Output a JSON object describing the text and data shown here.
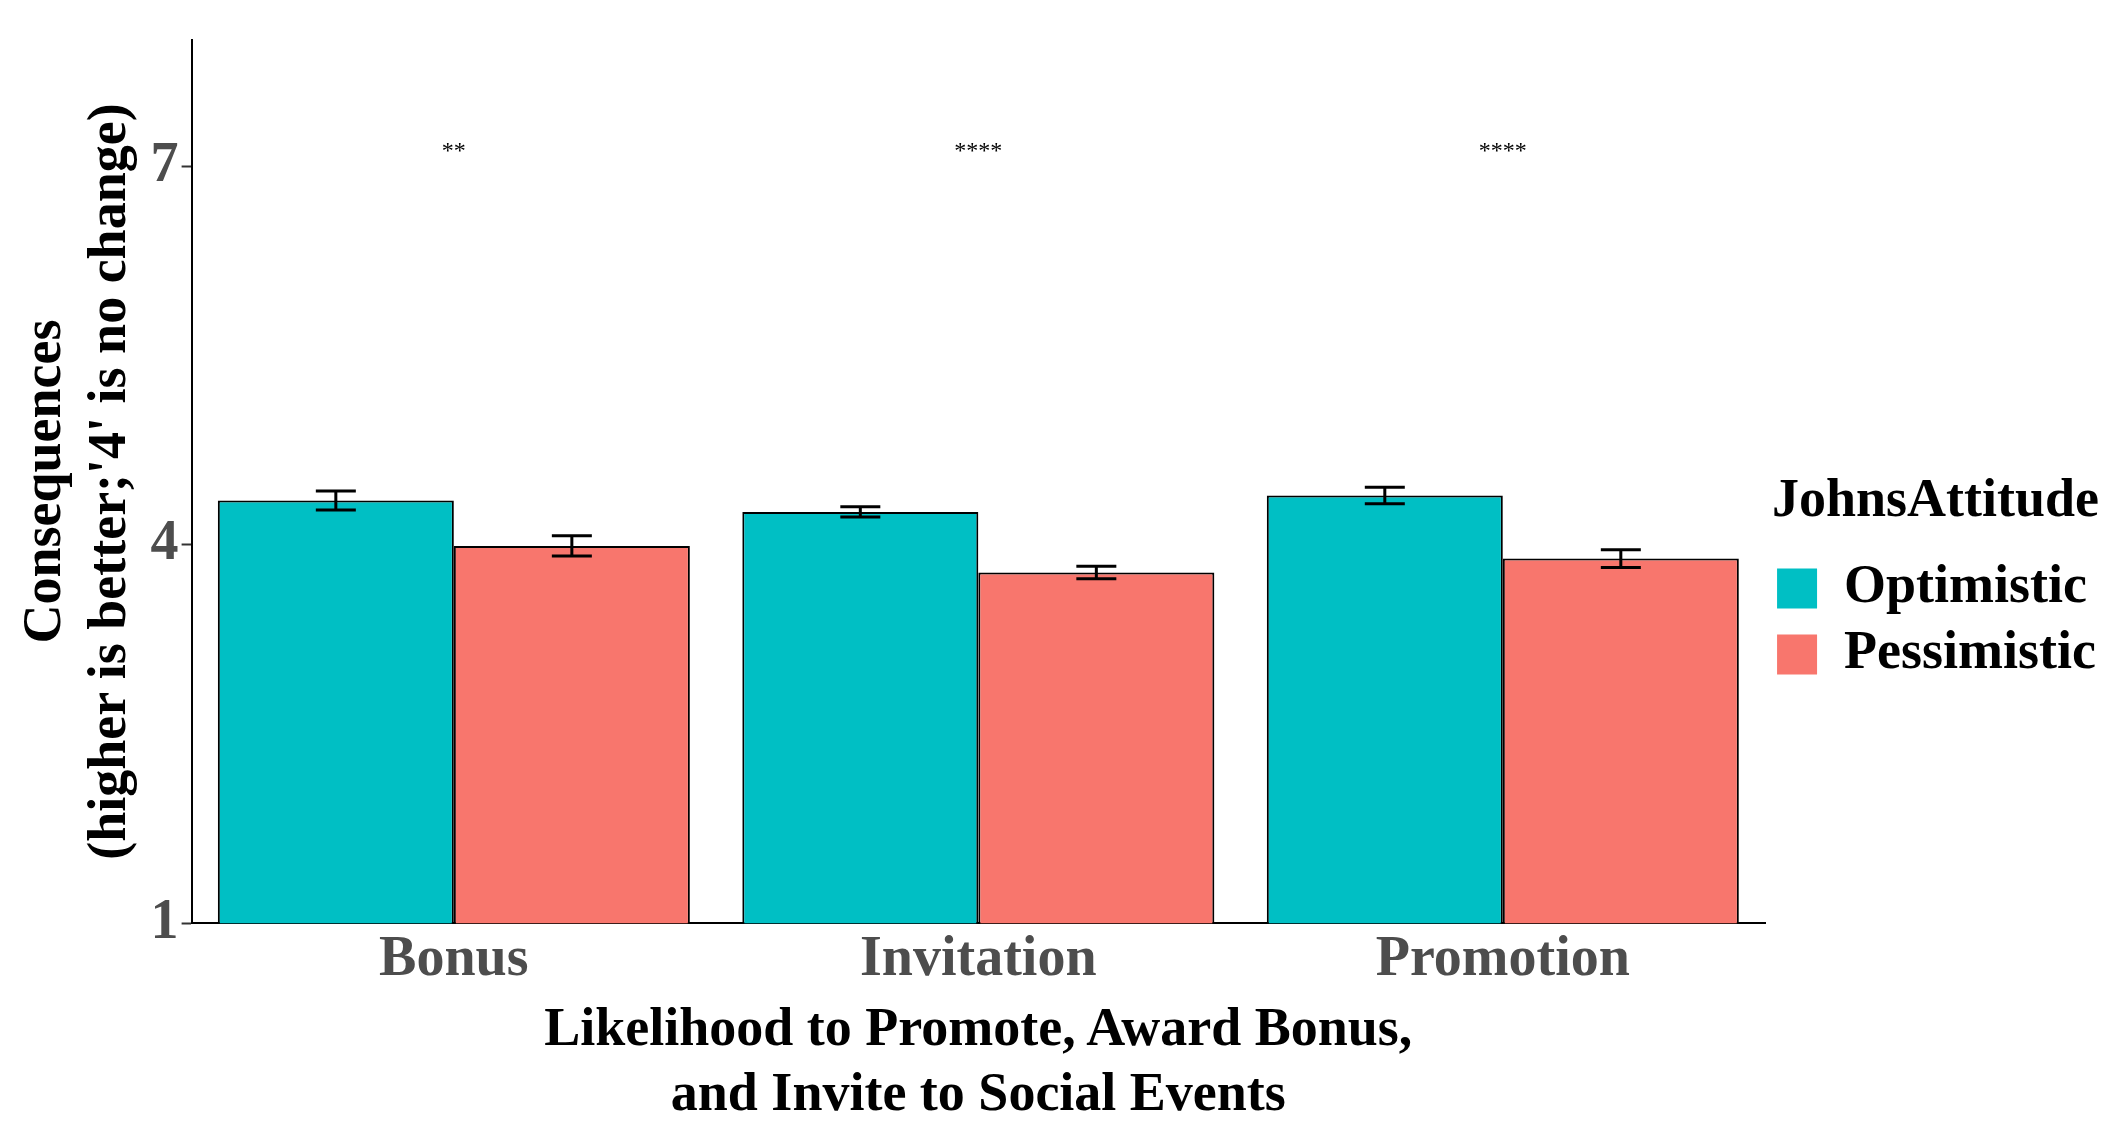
{
  "chart_data": {
    "type": "bar",
    "xlabel": "Likelihood to Promote, Award Bonus,\nand Invite to Social Events",
    "ylabel": "Consequences\n(higher is better;'4' is no change)",
    "legend_title": "JohnsAttitude",
    "categories": [
      "Bonus",
      "Invitation",
      "Promotion"
    ],
    "series": [
      {
        "name": "Optimistic",
        "color": "#00bfc4",
        "values": [
          4.35,
          4.26,
          4.39
        ],
        "errors": [
          0.075,
          0.04,
          0.065
        ]
      },
      {
        "name": "Pessimistic",
        "color": "#f8766d",
        "values": [
          3.99,
          3.78,
          3.89
        ],
        "errors": [
          0.08,
          0.05,
          0.07
        ]
      }
    ],
    "ylim": [
      1,
      8
    ],
    "yticks": [
      1,
      4,
      7
    ],
    "grid": false,
    "legend": "right",
    "annotations": [
      "**",
      "****",
      "****"
    ]
  }
}
